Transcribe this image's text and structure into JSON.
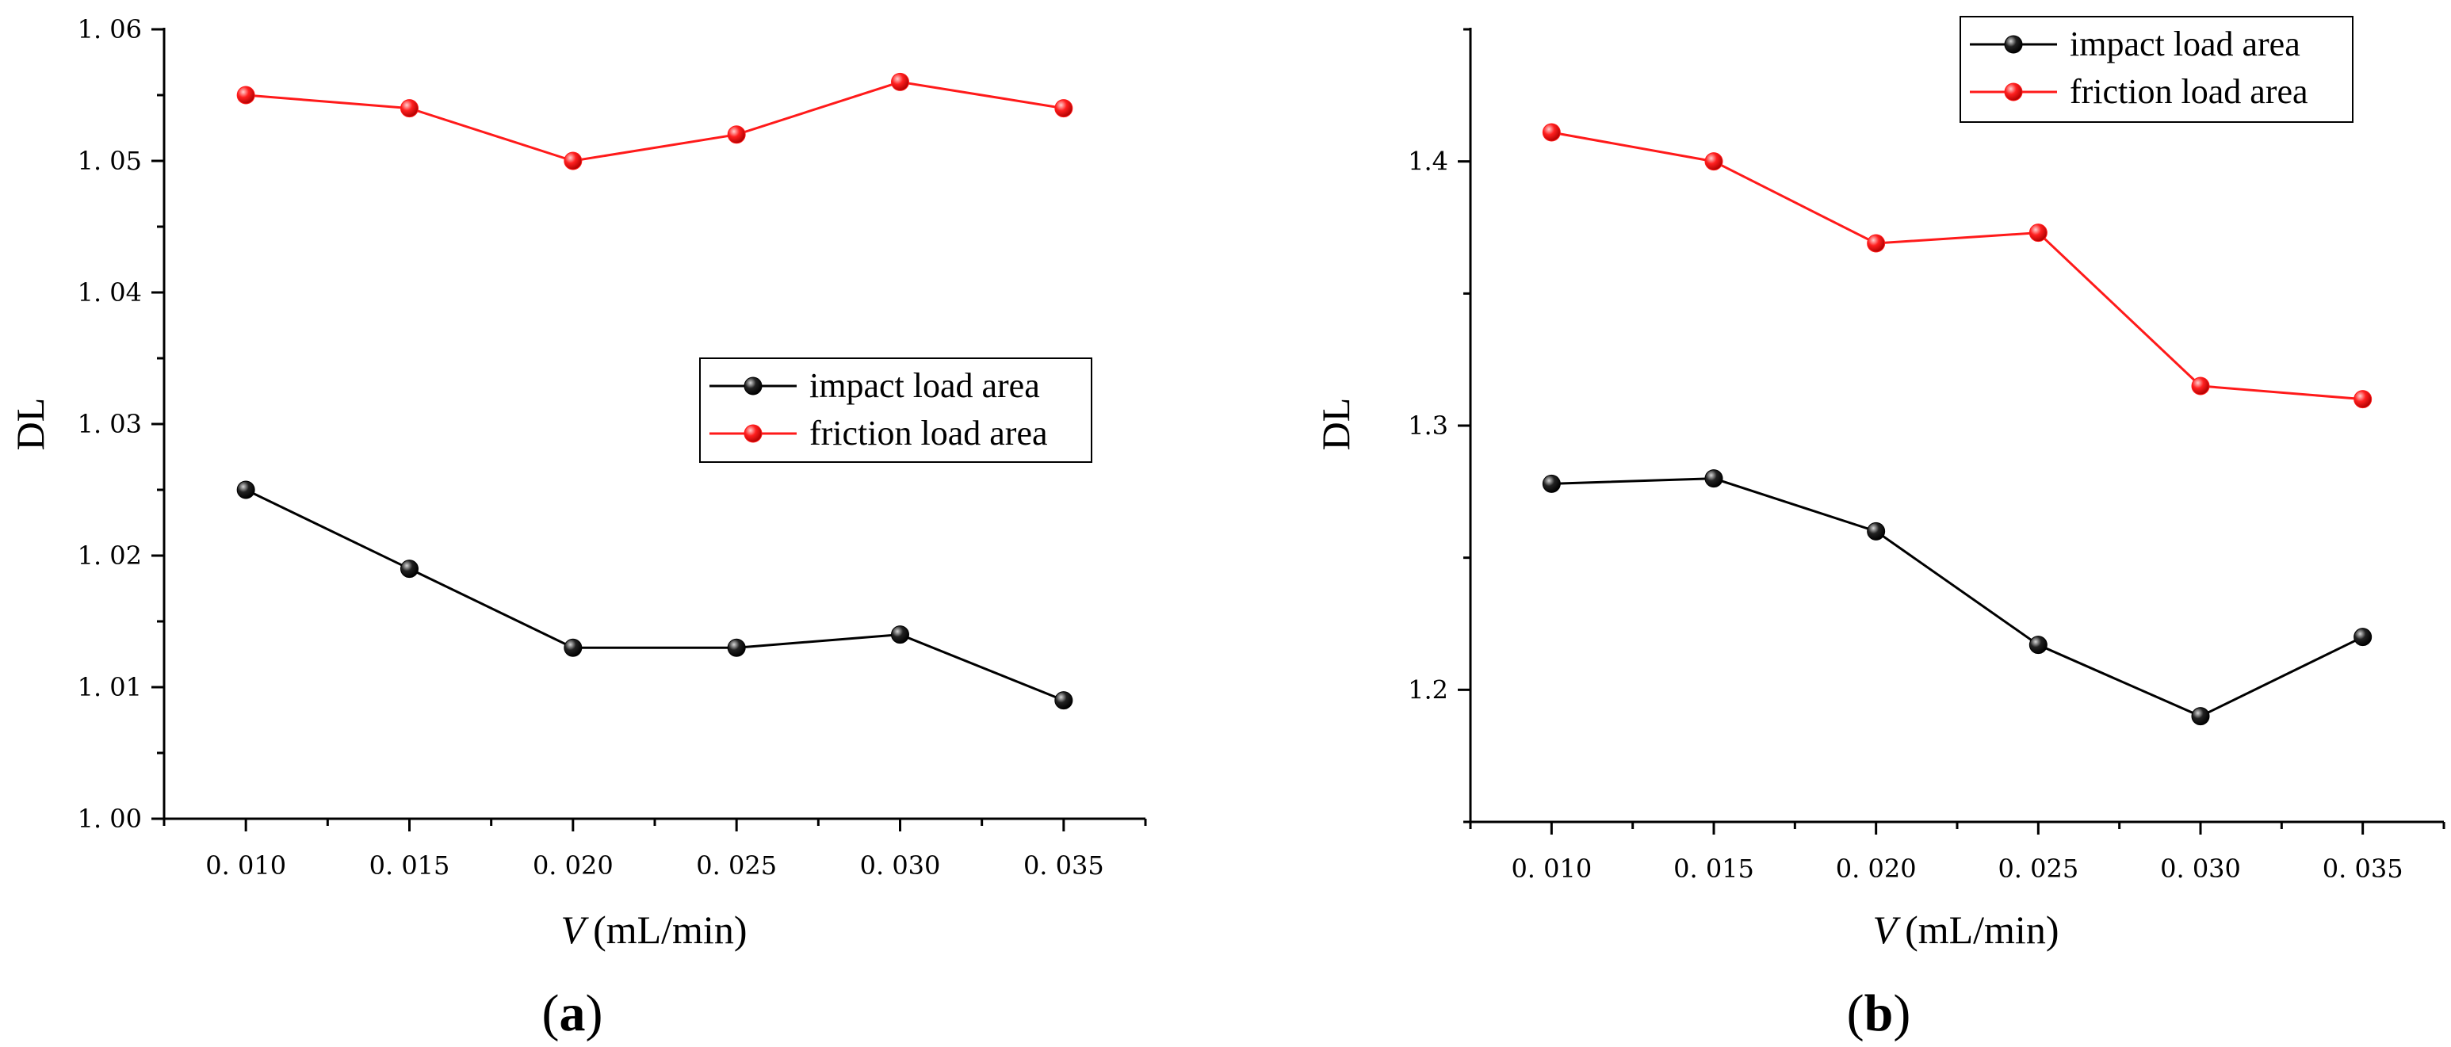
{
  "chart_data": [
    {
      "type": "line",
      "panel_label": "a",
      "ylabel": "DL",
      "xlabel_var": "V",
      "xlabel_unit": "(mL/min)",
      "x": [
        0.01,
        0.015,
        0.02,
        0.025,
        0.03,
        0.035
      ],
      "x_tick_labels": [
        "0. 010",
        "0. 015",
        "0. 020",
        "0. 025",
        "0. 030",
        "0. 035"
      ],
      "xlim": [
        0.0075,
        0.0375
      ],
      "ylim": [
        1.0,
        1.06
      ],
      "y_ticks": [
        1.0,
        1.01,
        1.02,
        1.03,
        1.04,
        1.05,
        1.06
      ],
      "y_tick_labels": [
        "1. 00",
        "1. 01",
        "1. 02",
        "1. 03",
        "1. 04",
        "1. 05",
        "1. 06"
      ],
      "legend_position": "middle-right",
      "grid": false,
      "series": [
        {
          "name": "impact load area",
          "color": "#000000",
          "values": [
            1.025,
            1.019,
            1.013,
            1.013,
            1.014,
            1.009
          ]
        },
        {
          "name": "friction load area",
          "color": "#ff1a1a",
          "values": [
            1.055,
            1.054,
            1.05,
            1.052,
            1.056,
            1.054
          ]
        }
      ]
    },
    {
      "type": "line",
      "panel_label": "b",
      "ylabel": "DL",
      "xlabel_var": "V",
      "xlabel_unit": "(mL/min)",
      "x": [
        0.01,
        0.015,
        0.02,
        0.025,
        0.03,
        0.035
      ],
      "x_tick_labels": [
        "0. 010",
        "0. 015",
        "0. 020",
        "0. 025",
        "0. 030",
        "0. 035"
      ],
      "xlim": [
        0.0075,
        0.0375
      ],
      "ylim": [
        1.15,
        1.45
      ],
      "y_ticks": [
        1.2,
        1.3,
        1.4
      ],
      "y_tick_labels": [
        "1.2",
        "1.3",
        "1.4"
      ],
      "legend_position": "top-right",
      "grid": false,
      "series": [
        {
          "name": "impact load area",
          "color": "#000000",
          "values": [
            1.278,
            1.28,
            1.26,
            1.217,
            1.19,
            1.22
          ]
        },
        {
          "name": "friction load area",
          "color": "#ff1a1a",
          "values": [
            1.411,
            1.4,
            1.369,
            1.373,
            1.315,
            1.31
          ]
        }
      ]
    }
  ]
}
